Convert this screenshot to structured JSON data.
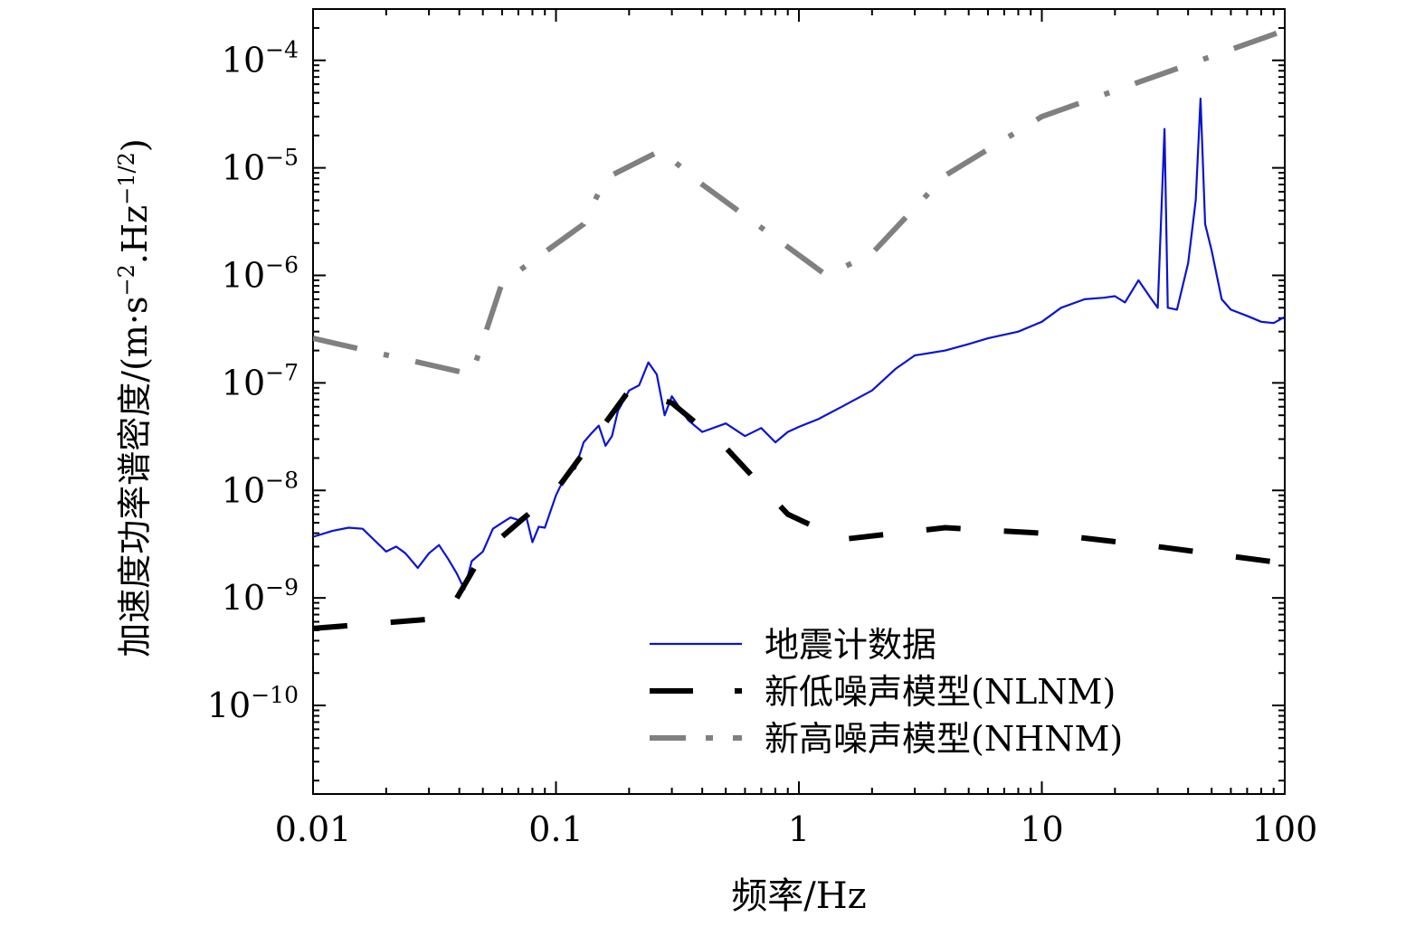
{
  "chart_data": {
    "type": "line",
    "title": "",
    "xlabel": "频率/Hz",
    "ylabel_main": "加速度功率谱密度/(m·s",
    "ylabel_sup1": "−2",
    "ylabel_mid": ".Hz",
    "ylabel_sup2": "−1/2",
    "ylabel_end": ")",
    "x_scale": "log",
    "y_scale": "log",
    "xlim": [
      0.01,
      100
    ],
    "ylim": [
      1.5e-11,
      0.0003
    ],
    "x_ticks": [
      {
        "value": 0.01,
        "label": "0.01"
      },
      {
        "value": 0.1,
        "label": "0.1"
      },
      {
        "value": 1,
        "label": "1"
      },
      {
        "value": 10,
        "label": "10"
      },
      {
        "value": 100,
        "label": "100"
      }
    ],
    "y_ticks": [
      {
        "value": 1e-10,
        "base": "10",
        "exp": "−10"
      },
      {
        "value": 1e-09,
        "base": "10",
        "exp": "−9"
      },
      {
        "value": 1e-08,
        "base": "10",
        "exp": "−8"
      },
      {
        "value": 1e-07,
        "base": "10",
        "exp": "−7"
      },
      {
        "value": 1e-06,
        "base": "10",
        "exp": "−6"
      },
      {
        "value": 1e-05,
        "base": "10",
        "exp": "−5"
      },
      {
        "value": 0.0001,
        "base": "10",
        "exp": "−4"
      }
    ],
    "grid": false,
    "legend_position": "bottom-right",
    "series": [
      {
        "name": "地震计数据",
        "color": "#0a14d2",
        "style": "solid",
        "points": [
          [
            0.01,
            3.7e-09
          ],
          [
            0.012,
            4.2e-09
          ],
          [
            0.014,
            4.5e-09
          ],
          [
            0.016,
            4.4e-09
          ],
          [
            0.018,
            3.4e-09
          ],
          [
            0.02,
            2.7e-09
          ],
          [
            0.022,
            3e-09
          ],
          [
            0.024,
            2.6e-09
          ],
          [
            0.027,
            1.9e-09
          ],
          [
            0.03,
            2.6e-09
          ],
          [
            0.033,
            3.1e-09
          ],
          [
            0.036,
            2.3e-09
          ],
          [
            0.039,
            1.7e-09
          ],
          [
            0.042,
            1.2e-09
          ],
          [
            0.045,
            2.2e-09
          ],
          [
            0.05,
            2.7e-09
          ],
          [
            0.055,
            4.4e-09
          ],
          [
            0.06,
            5e-09
          ],
          [
            0.065,
            5.6e-09
          ],
          [
            0.07,
            5.3e-09
          ],
          [
            0.075,
            6e-09
          ],
          [
            0.08,
            3.3e-09
          ],
          [
            0.085,
            4.6e-09
          ],
          [
            0.09,
            4.5e-09
          ],
          [
            0.1,
            9e-09
          ],
          [
            0.11,
            1.4e-08
          ],
          [
            0.12,
            1.6e-08
          ],
          [
            0.13,
            2.8e-08
          ],
          [
            0.14,
            3.4e-08
          ],
          [
            0.15,
            4e-08
          ],
          [
            0.16,
            2.6e-08
          ],
          [
            0.17,
            3.2e-08
          ],
          [
            0.18,
            5.5e-08
          ],
          [
            0.2,
            8.5e-08
          ],
          [
            0.22,
            9.5e-08
          ],
          [
            0.24,
            1.55e-07
          ],
          [
            0.26,
            1.2e-07
          ],
          [
            0.28,
            5e-08
          ],
          [
            0.3,
            7.5e-08
          ],
          [
            0.35,
            4.5e-08
          ],
          [
            0.4,
            3.5e-08
          ],
          [
            0.5,
            4.2e-08
          ],
          [
            0.6,
            3.2e-08
          ],
          [
            0.7,
            3.8e-08
          ],
          [
            0.8,
            2.8e-08
          ],
          [
            0.9,
            3.5e-08
          ],
          [
            1,
            3.9e-08
          ],
          [
            1.2,
            4.6e-08
          ],
          [
            1.5,
            6e-08
          ],
          [
            2,
            8.5e-08
          ],
          [
            2.5,
            1.35e-07
          ],
          [
            3,
            1.8e-07
          ],
          [
            4,
            2e-07
          ],
          [
            5,
            2.3e-07
          ],
          [
            6,
            2.6e-07
          ],
          [
            8,
            3e-07
          ],
          [
            10,
            3.7e-07
          ],
          [
            12,
            5e-07
          ],
          [
            15,
            6e-07
          ],
          [
            18,
            6.2e-07
          ],
          [
            20,
            6.4e-07
          ],
          [
            22,
            5.6e-07
          ],
          [
            25,
            9e-07
          ],
          [
            28,
            6.2e-07
          ],
          [
            30,
            5e-07
          ],
          [
            32,
            2.3e-05
          ],
          [
            33,
            5e-07
          ],
          [
            36,
            4.8e-07
          ],
          [
            40,
            1.3e-06
          ],
          [
            43,
            5e-06
          ],
          [
            45,
            4.4e-05
          ],
          [
            47,
            3e-06
          ],
          [
            50,
            1.7e-06
          ],
          [
            55,
            6e-07
          ],
          [
            60,
            4.8e-07
          ],
          [
            70,
            4.2e-07
          ],
          [
            80,
            3.7e-07
          ],
          [
            90,
            3.6e-07
          ],
          [
            100,
            4.1e-07
          ]
        ]
      },
      {
        "name": "新低噪声模型(NLNM)",
        "color": "#000000",
        "style": "dashed",
        "points": [
          [
            0.01,
            5.2e-10
          ],
          [
            0.035,
            6.5e-10
          ],
          [
            0.05,
            2.6e-09
          ],
          [
            0.1,
            1e-08
          ],
          [
            0.2,
            8.5e-08
          ],
          [
            0.3,
            6.5e-08
          ],
          [
            0.5,
            2.5e-08
          ],
          [
            0.9,
            6e-09
          ],
          [
            1.5,
            3.5e-09
          ],
          [
            4,
            4.5e-09
          ],
          [
            10,
            4e-09
          ],
          [
            30,
            3e-09
          ],
          [
            100,
            2.1e-09
          ]
        ]
      },
      {
        "name": "新高噪声模型(NHNM)",
        "color": "#808080",
        "style": "dashdot",
        "points": [
          [
            0.01,
            2.6e-07
          ],
          [
            0.045,
            1.2e-07
          ],
          [
            0.06,
            8.5e-07
          ],
          [
            0.13,
            3e-06
          ],
          [
            0.16,
            8e-06
          ],
          [
            0.27,
            1.45e-05
          ],
          [
            0.4,
            7e-06
          ],
          [
            1.3,
            1e-06
          ],
          [
            2,
            1.6e-06
          ],
          [
            4,
            8.5e-06
          ],
          [
            10,
            3e-05
          ],
          [
            100,
            0.00019
          ]
        ]
      }
    ]
  }
}
